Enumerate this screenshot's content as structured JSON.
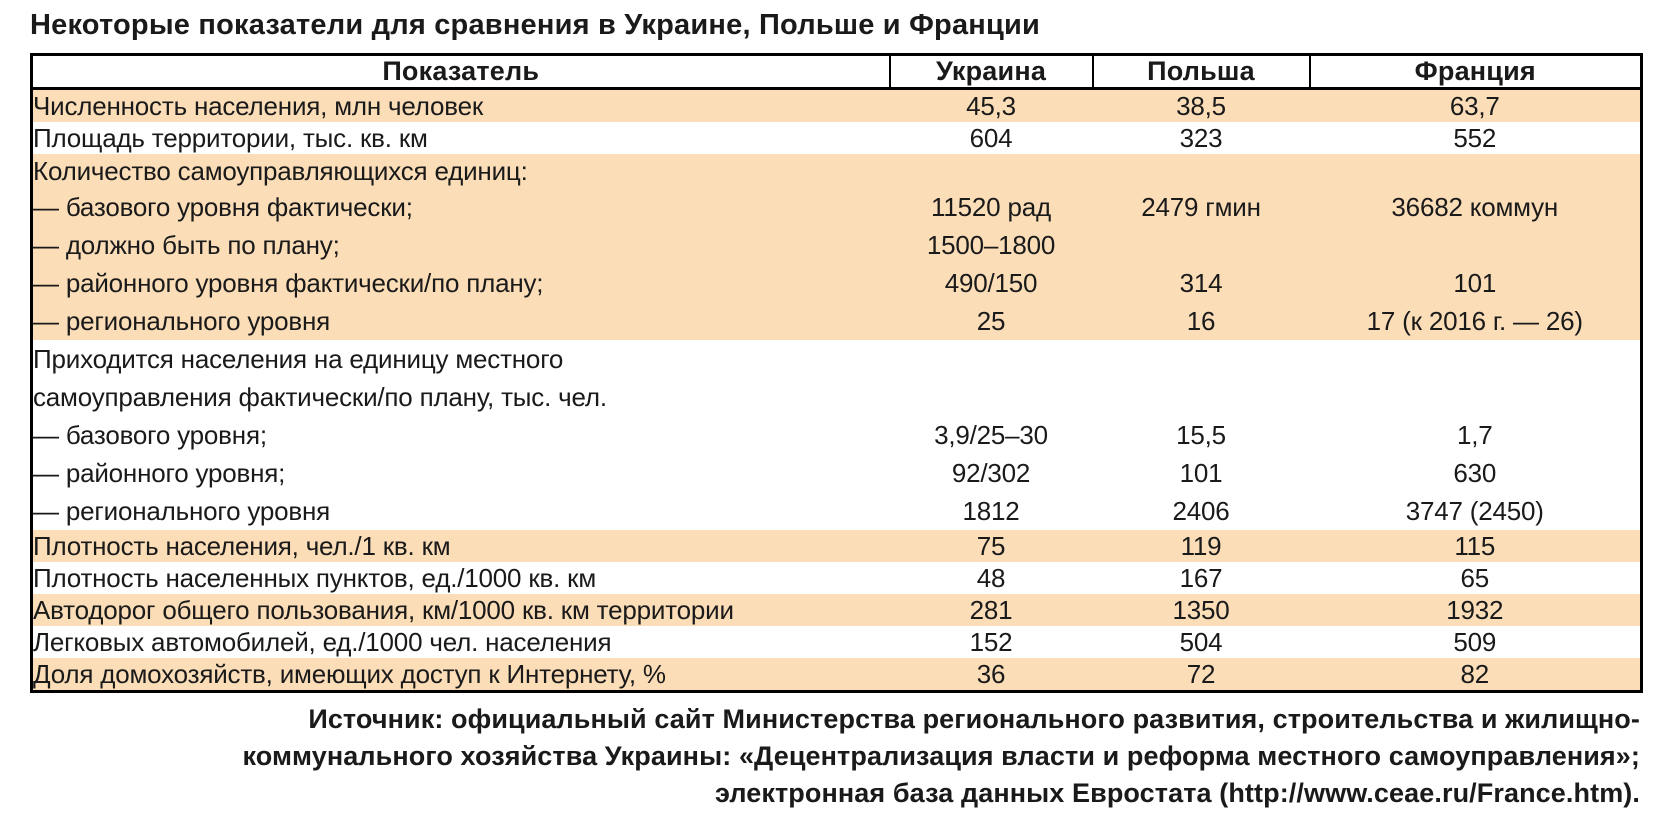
{
  "title": "Некоторые показатели для сравнения в Украине, Польше и Франции",
  "colors": {
    "band": "#fbddb8",
    "border": "#000000",
    "text": "#1a1a1a"
  },
  "table": {
    "columns": [
      "Показатель",
      "Украина",
      "Польша",
      "Франция"
    ],
    "rows": [
      {
        "label": "Численность населения, млн человек",
        "values": [
          "45,3",
          "38,5",
          "63,7"
        ],
        "bg": "orange",
        "size": "normal"
      },
      {
        "label": "Площадь территории, тыс. кв. км",
        "values": [
          "604",
          "323",
          "552"
        ],
        "bg": "white",
        "size": "normal"
      },
      {
        "label": "Количество самоуправляющихся единиц:",
        "values": [
          "",
          "",
          ""
        ],
        "bg": "orange",
        "size": "section"
      },
      {
        "label": "— базового уровня фактически;",
        "values": [
          "11520 рад",
          "2479 гмин",
          "36682 коммун"
        ],
        "bg": "orange",
        "size": "tall"
      },
      {
        "label": "— должно быть по плану;",
        "values": [
          "1500–1800",
          "",
          ""
        ],
        "bg": "orange",
        "size": "tall"
      },
      {
        "label": "— районного уровня фактически/по плану;",
        "values": [
          "490/150",
          "314",
          "101"
        ],
        "bg": "orange",
        "size": "tall"
      },
      {
        "label": "— регионального уровня",
        "values": [
          "25",
          "16",
          "17 (к 2016 г. — 26)"
        ],
        "bg": "orange",
        "size": "tall"
      },
      {
        "label": "Приходится населения на единицу местного",
        "values": [
          "",
          "",
          ""
        ],
        "bg": "white",
        "size": "tall"
      },
      {
        "label": "самоуправления фактически/по плану, тыс. чел.",
        "values": [
          "",
          "",
          ""
        ],
        "bg": "white",
        "size": "tall"
      },
      {
        "label": "— базового уровня;",
        "values": [
          "3,9/25–30",
          "15,5",
          "1,7"
        ],
        "bg": "white",
        "size": "tall"
      },
      {
        "label": "— районного уровня;",
        "values": [
          "92/302",
          "101",
          "630"
        ],
        "bg": "white",
        "size": "tall"
      },
      {
        "label": "— регионального уровня",
        "values": [
          "1812",
          "2406",
          "3747 (2450)"
        ],
        "bg": "white",
        "size": "tall"
      },
      {
        "label": "Плотность населения, чел./1 кв. км",
        "values": [
          "75",
          "119",
          "115"
        ],
        "bg": "orange",
        "size": "normal"
      },
      {
        "label": "Плотность населенных пунктов, ед./1000 кв. км",
        "values": [
          "48",
          "167",
          "65"
        ],
        "bg": "white",
        "size": "normal"
      },
      {
        "label": "Автодорог общего пользования, км/1000 кв. км территории",
        "values": [
          "281",
          "1350",
          "1932"
        ],
        "bg": "orange",
        "size": "normal"
      },
      {
        "label": "Легковых автомобилей, ед./1000 чел. населения",
        "values": [
          "152",
          "504",
          "509"
        ],
        "bg": "white",
        "size": "normal"
      },
      {
        "label": "Доля домохозяйств, имеющих доступ к Интернету, %",
        "values": [
          "36",
          "72",
          "82"
        ],
        "bg": "orange",
        "size": "normal"
      }
    ]
  },
  "source": {
    "lines": [
      "Источник: официальный сайт Министерства регионального развития, строительства и жилищно-",
      "коммунального хозяйства Украины: «Децентрализация власти и реформа местного самоуправления»;",
      "электронная база данных Евростата (http://www.ceae.ru/France.htm)."
    ]
  }
}
